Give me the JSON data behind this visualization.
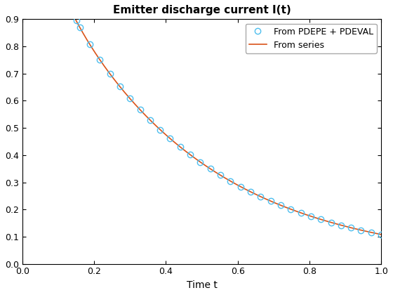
{
  "title": "Emitter discharge current I(t)",
  "xlabel": "Time t",
  "ylabel": "",
  "xlim": [
    0,
    1.0
  ],
  "ylim": [
    0,
    0.9
  ],
  "yticks": [
    0.0,
    0.1,
    0.2,
    0.3,
    0.4,
    0.5,
    0.6,
    0.7,
    0.8,
    0.9
  ],
  "xticks": [
    0.0,
    0.2,
    0.4,
    0.6,
    0.8,
    1.0
  ],
  "legend_labels": [
    "From PDEPE + PDEVAL",
    "From series"
  ],
  "line_color": "#D95319",
  "marker_color": "#4DBEEE",
  "marker_style": "o",
  "marker_size": 6,
  "line_width": 1.2,
  "title_fontsize": 11,
  "label_fontsize": 10,
  "legend_fontsize": 9,
  "background_color": "#ffffff"
}
